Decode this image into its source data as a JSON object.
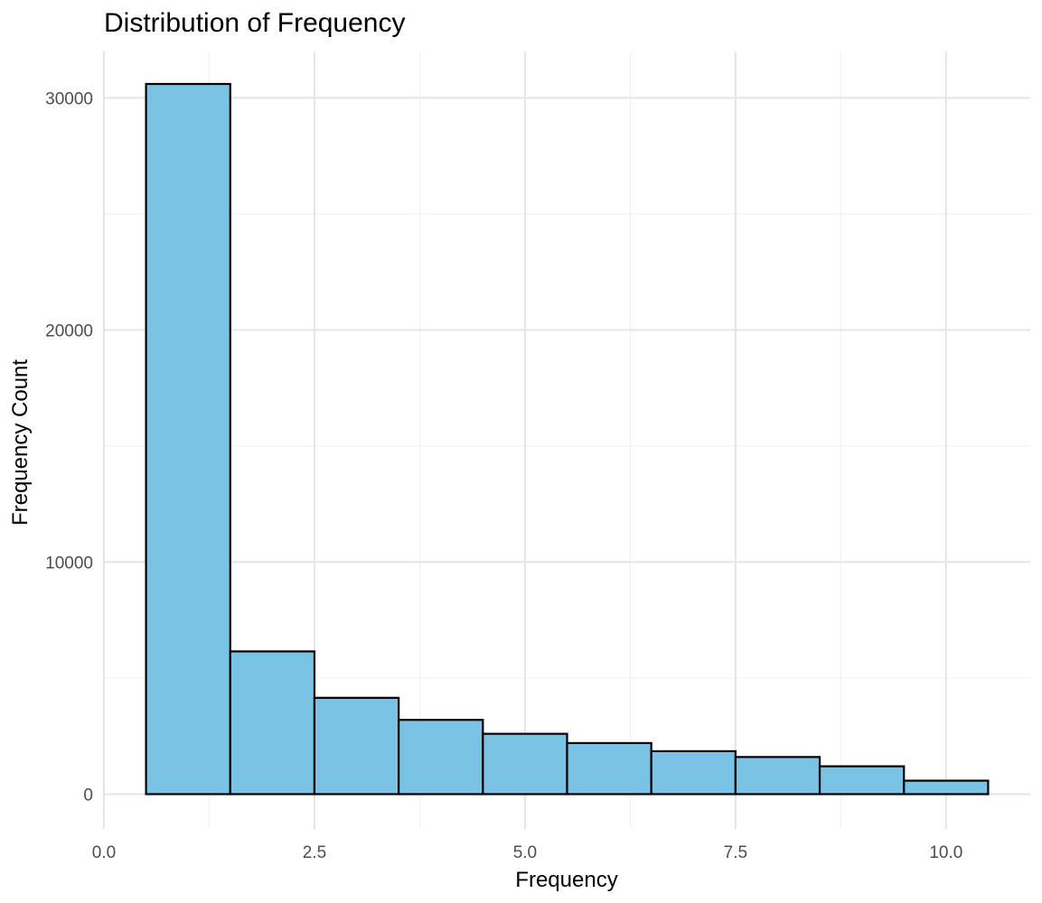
{
  "chart_data": {
    "type": "bar",
    "title": "Distribution of Frequency",
    "xlabel": "Frequency",
    "ylabel": "Frequency Count",
    "bins": [
      {
        "x_start": 0.5,
        "x_end": 1.5,
        "count": 30600
      },
      {
        "x_start": 1.5,
        "x_end": 2.5,
        "count": 6150
      },
      {
        "x_start": 2.5,
        "x_end": 3.5,
        "count": 4150
      },
      {
        "x_start": 3.5,
        "x_end": 4.5,
        "count": 3200
      },
      {
        "x_start": 4.5,
        "x_end": 5.5,
        "count": 2600
      },
      {
        "x_start": 5.5,
        "x_end": 6.5,
        "count": 2200
      },
      {
        "x_start": 6.5,
        "x_end": 7.5,
        "count": 1850
      },
      {
        "x_start": 7.5,
        "x_end": 8.5,
        "count": 1600
      },
      {
        "x_start": 8.5,
        "x_end": 9.5,
        "count": 1200
      },
      {
        "x_start": 9.5,
        "x_end": 10.5,
        "count": 580
      }
    ],
    "xlim": [
      0,
      11
    ],
    "ylim": [
      -1500,
      32000
    ],
    "x_ticks": [
      {
        "value": 0,
        "label": "0.0"
      },
      {
        "value": 2.5,
        "label": "2.5"
      },
      {
        "value": 5,
        "label": "5.0"
      },
      {
        "value": 7.5,
        "label": "7.5"
      },
      {
        "value": 10,
        "label": "10.0"
      }
    ],
    "x_minor_ticks": [
      1.25,
      3.75,
      6.25,
      8.75
    ],
    "y_ticks": [
      {
        "value": 0,
        "label": "0"
      },
      {
        "value": 10000,
        "label": "10000"
      },
      {
        "value": 20000,
        "label": "20000"
      },
      {
        "value": 30000,
        "label": "30000"
      }
    ],
    "y_minor_ticks": [
      5000,
      15000,
      25000
    ],
    "grid": true,
    "colors": {
      "bar_fill": "#7BC3E5",
      "bar_stroke": "#000000",
      "grid_major": "#E5E5E5",
      "grid_minor": "#F2F2F2"
    }
  }
}
